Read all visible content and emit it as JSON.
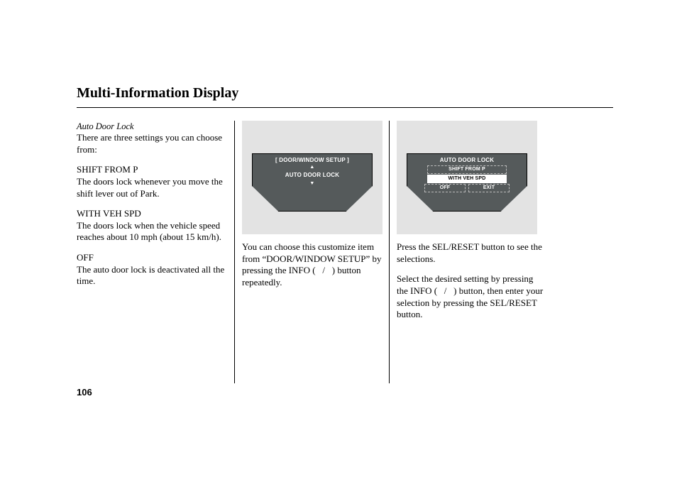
{
  "title": "Multi-Information Display",
  "page_number": "106",
  "colors": {
    "page_bg": "#ffffff",
    "panel_bg": "#e3e3e3",
    "dash_bg": "#555a5b",
    "dash_text": "#ffffff",
    "selected_bg": "#ffffff",
    "selected_text": "#000000",
    "rule": "#000000"
  },
  "col1": {
    "subhead": "Auto Door Lock",
    "intro": "There are three settings you can choose from:",
    "s1_name": "SHIFT FROM P",
    "s1_desc": "The doors lock whenever you move the shift lever out of Park.",
    "s2_name": "WITH VEH SPD",
    "s2_desc": "The doors lock when the vehicle speed reaches about 10 mph (about 15 km/h).",
    "s3_name": "OFF",
    "s3_desc": "The auto door lock is deactivated all the time."
  },
  "col2": {
    "dash": {
      "header": "[ DOOR/WINDOW SETUP ]",
      "up": "▲",
      "line": "AUTO DOOR LOCK",
      "down": "▼"
    },
    "caption": "You can choose this customize item from “DOOR/WINDOW SETUP” by pressing the INFO (   /   ) button repeatedly."
  },
  "col3": {
    "dash": {
      "title": "AUTO DOOR LOCK",
      "opt1": "SHIFT FROM P",
      "opt2": "WITH VEH SPD",
      "opt3": "OFF",
      "opt4": "EXIT",
      "selected_index": 1
    },
    "caption1": "Press the SEL/RESET button to see the selections.",
    "caption2": "Select the desired setting by pressing the INFO (   /   ) button, then enter your selection by pressing the SEL/RESET button."
  }
}
